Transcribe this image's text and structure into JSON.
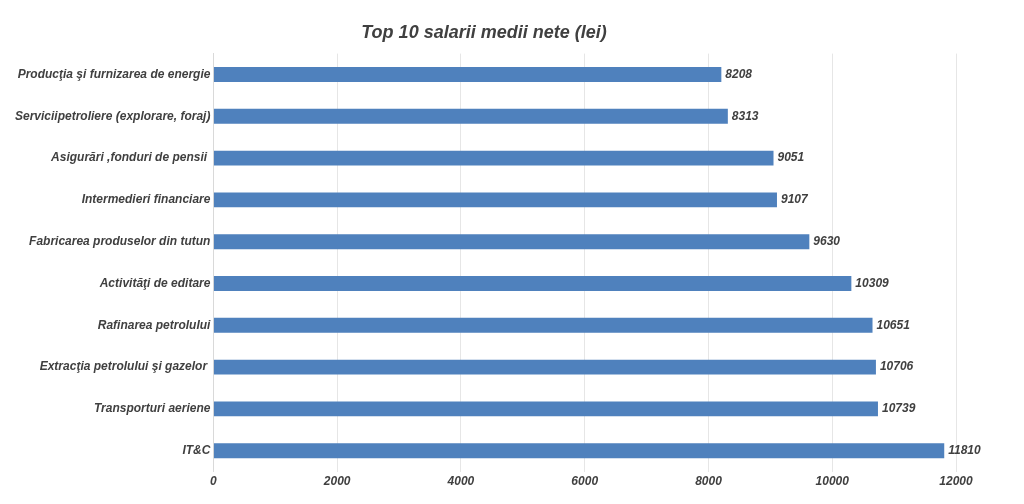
{
  "chart_data": {
    "type": "bar",
    "orientation": "horizontal",
    "title": "Top 10 salarii medii nete (lei)",
    "categories": [
      "Producţia şi furnizarea de energie",
      "Serviciipetroliere (explorare, foraj)",
      "Asigurări ,fonduri de pensii ",
      "Intermedieri financiare",
      "Fabricarea produselor din tutun",
      "Activităţi de editare",
      "Rafinarea petrolului",
      "Extracţia petrolului şi gazelor ",
      "Transporturi aeriene",
      "IT&C"
    ],
    "values": [
      8208,
      8313,
      9051,
      9107,
      9630,
      10309,
      10651,
      10706,
      10739,
      11810
    ],
    "color": "#4f81bd",
    "xlim": [
      0,
      12000
    ],
    "xticks": [
      0,
      2000,
      4000,
      6000,
      8000,
      10000,
      12000
    ],
    "grid": "x",
    "data_labels": true
  }
}
